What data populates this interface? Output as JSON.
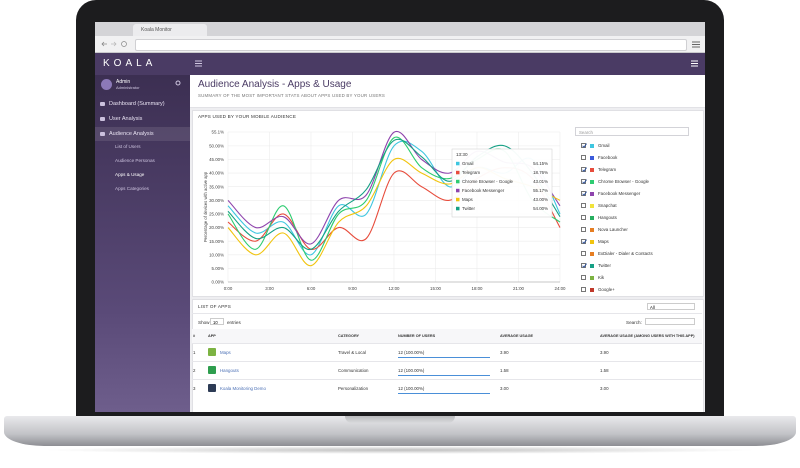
{
  "browser": {
    "tab": "Koala Monitor"
  },
  "sidebar": {
    "brand": "KOALA",
    "user": {
      "name": "Admin",
      "role": "Administrator"
    },
    "menu": [
      "Dashboard (Summary)",
      "User Analysis",
      "Audience Analysis"
    ],
    "submenu": [
      "List of Users",
      "Audience Personas",
      "Apps & Usage",
      "Apps Categories"
    ]
  },
  "page": {
    "title": "Audience Analysis - Apps & Usage",
    "subtitle": "SUMMARY OF THE MOST IMPORTANT STATS ABOUT APPS USED BY YOUR USERS"
  },
  "chart_card": {
    "title": "APPS USED BY YOUR MOBILE AUDIENCE",
    "search": "Search",
    "legend": [
      {
        "name": "Gmail",
        "color": "#3ec6e0",
        "checked": true
      },
      {
        "name": "Facebook",
        "color": "#3b5bdb",
        "checked": false
      },
      {
        "name": "Telegram",
        "color": "#e74c3c",
        "checked": true
      },
      {
        "name": "Chrome Browser - Google",
        "color": "#2ecc71",
        "checked": true
      },
      {
        "name": "Facebook Messenger",
        "color": "#8e44ad",
        "checked": true
      },
      {
        "name": "Snapchat",
        "color": "#f1e33b",
        "checked": false
      },
      {
        "name": "Hangouts",
        "color": "#27ae60",
        "checked": false
      },
      {
        "name": "Nova Launcher",
        "color": "#e67e22",
        "checked": false
      },
      {
        "name": "Maps",
        "color": "#f1c40f",
        "checked": true
      },
      {
        "name": "ExDialer - Dialer & Contacts",
        "color": "#e67e22",
        "checked": false
      },
      {
        "name": "Twitter",
        "color": "#16a085",
        "checked": true
      },
      {
        "name": "Kik",
        "color": "#7cb342",
        "checked": false
      },
      {
        "name": "Google+",
        "color": "#c0392b",
        "checked": false
      }
    ],
    "tooltip": {
      "time": "13:30",
      "rows": [
        {
          "name": "Gmail",
          "value": "54.15%",
          "color": "#3ec6e0"
        },
        {
          "name": "Telegram",
          "value": "18.76%",
          "color": "#e74c3c"
        },
        {
          "name": "Chrome Browser - Google",
          "value": "43.01%",
          "color": "#2ecc71"
        },
        {
          "name": "Facebook Messenger",
          "value": "55.17%",
          "color": "#8e44ad"
        },
        {
          "name": "Maps",
          "value": "43.00%",
          "color": "#f1c40f"
        },
        {
          "name": "Twitter",
          "value": "54.00%",
          "color": "#16a085"
        }
      ]
    }
  },
  "chart_data": {
    "type": "line",
    "y_label": "Percentage of devices with active app",
    "x": [
      0,
      2,
      4,
      6,
      8,
      10,
      12,
      14,
      16,
      18,
      20,
      22,
      24
    ],
    "xlim": [
      0,
      24
    ],
    "xticks": [
      {
        "value": 0,
        "label": "0:00"
      },
      {
        "value": 3,
        "label": "3:00"
      },
      {
        "value": 6,
        "label": "6:00"
      },
      {
        "value": 9,
        "label": "9:00"
      },
      {
        "value": 12,
        "label": "12:00"
      },
      {
        "value": 15,
        "label": "15:00"
      },
      {
        "value": 18,
        "label": "18:00"
      },
      {
        "value": 21,
        "label": "21:00"
      },
      {
        "value": 24,
        "label": "24:00"
      }
    ],
    "ylim": [
      0,
      55.1
    ],
    "yticks": [
      {
        "value": 0,
        "label": "0.00%"
      },
      {
        "value": 5,
        "label": "5.00%"
      },
      {
        "value": 10,
        "label": "10.00%"
      },
      {
        "value": 15,
        "label": "15.00%"
      },
      {
        "value": 20,
        "label": "20.00%"
      },
      {
        "value": 25,
        "label": "25.00%"
      },
      {
        "value": 30,
        "label": "30.00%"
      },
      {
        "value": 35,
        "label": "35.00%"
      },
      {
        "value": 40,
        "label": "40.00%"
      },
      {
        "value": 45,
        "label": "45.00%"
      },
      {
        "value": 50,
        "label": "50.00%"
      },
      {
        "value": 55.1,
        "label": "55.1%"
      }
    ],
    "grid": true,
    "series": [
      {
        "name": "Gmail",
        "color": "#3ec6e0",
        "values": [
          28,
          18,
          22,
          10,
          28,
          25,
          50,
          48,
          35,
          42,
          40,
          45,
          25
        ]
      },
      {
        "name": "Telegram",
        "color": "#e74c3c",
        "values": [
          22,
          15,
          25,
          12,
          20,
          16,
          40,
          35,
          30,
          38,
          42,
          38,
          20
        ]
      },
      {
        "name": "Chrome Browser - Google",
        "color": "#2ecc71",
        "values": [
          25,
          12,
          28,
          8,
          25,
          30,
          53,
          42,
          38,
          45,
          48,
          30,
          22
        ]
      },
      {
        "name": "Facebook Messenger",
        "color": "#8e44ad",
        "values": [
          30,
          20,
          24,
          14,
          30,
          32,
          55,
          45,
          40,
          48,
          44,
          42,
          28
        ]
      },
      {
        "name": "Maps",
        "color": "#f1c40f",
        "values": [
          20,
          10,
          18,
          6,
          22,
          28,
          45,
          40,
          36,
          42,
          38,
          35,
          30
        ]
      },
      {
        "name": "Twitter",
        "color": "#16a085",
        "values": [
          26,
          16,
          20,
          12,
          26,
          34,
          52,
          46,
          37,
          46,
          50,
          40,
          24
        ]
      }
    ]
  },
  "table": {
    "title": "LIST OF APPS",
    "filter": "All",
    "show": "Show",
    "length": "10",
    "entries": "entries",
    "search": "Search:",
    "columns": [
      "#",
      "APP",
      "CATEGORY",
      "NUMBER OF USERS",
      "AVERAGE USAGE",
      "AVERAGE USAGE (AMONG USERS WITH THIS APP)"
    ],
    "rows": [
      [
        "1",
        "Maps",
        "Travel & Local",
        "12 (100.00%)",
        "3.90",
        "3.90"
      ],
      [
        "2",
        "Hangouts",
        "Communication",
        "12 (100.00%)",
        "1.58",
        "1.58"
      ],
      [
        "3",
        "Koala Monitoring Demo",
        "Personalization",
        "12 (100.00%)",
        "3.00",
        "3.00"
      ]
    ]
  }
}
